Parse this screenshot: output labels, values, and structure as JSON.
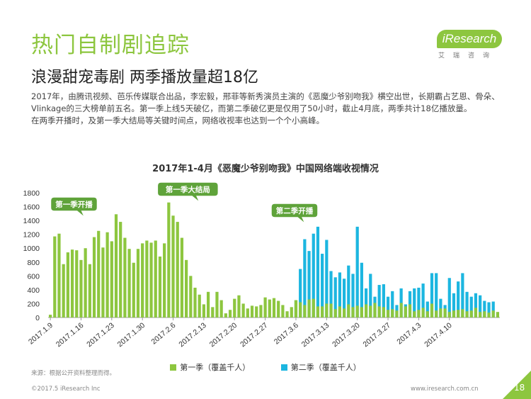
{
  "header": {
    "title": "热门自制剧追踪",
    "subtitle": "浪漫甜宠毒剧 两季播放量超18亿",
    "paragraphs": [
      "2017年，由腾讯视频、芭乐传媒联合出品，李宏毅，邢菲等新秀演员主演的《恶魔少爷别吻我》横空出世，长期霸占艺恩、骨朵、Vlinkage的三大榜单前五名。第一季上线5天破亿，而第二季破亿更是仅用了50小时，截止4月底，两季共计18亿播放量。",
      "在两季开播时，及第一季大结局等关键时间点，网络收视率也达到一个个小高峰。"
    ]
  },
  "logo": {
    "brand": "iResearch",
    "cn": "艾瑞咨询",
    "color": "#8dc63f"
  },
  "chart_data": {
    "type": "bar",
    "title": "2017年1-4月《恶魔少爷别吻我》中国网络端收视情况",
    "ylim": [
      0,
      1800
    ],
    "yticks": [
      0,
      200,
      400,
      600,
      800,
      1000,
      1200,
      1400,
      1600,
      1800
    ],
    "xtick_labels": [
      "2017.1.9",
      "2017.1.16",
      "2017.1.23",
      "2017.1.30",
      "2017.2.6",
      "2017.2.13",
      "2017.2.20",
      "2017.2.27",
      "2017.3.6",
      "2017.3.13",
      "2017.3.20",
      "2017.3.27",
      "2017.4.3",
      "2017.4.10"
    ],
    "series": [
      {
        "name": "第一季（覆盖千人）",
        "color": "#8dc63f",
        "values": [
          40,
          1170,
          1210,
          770,
          940,
          980,
          970,
          830,
          1000,
          770,
          1160,
          1250,
          1010,
          1230,
          1100,
          1490,
          1380,
          1150,
          990,
          790,
          990,
          1070,
          1110,
          1080,
          1110,
          880,
          1070,
          1660,
          1470,
          1380,
          1150,
          830,
          600,
          430,
          330,
          190,
          370,
          150,
          370,
          250,
          60,
          110,
          270,
          320,
          200,
          130,
          170,
          160,
          180,
          290,
          260,
          280,
          240,
          180,
          90,
          150,
          250,
          220,
          180,
          260,
          270,
          160,
          160,
          200,
          200,
          120,
          160,
          130,
          190,
          150,
          170,
          150,
          190,
          170,
          210,
          160,
          150,
          110,
          120,
          100,
          210,
          160,
          190,
          90,
          110,
          140,
          90,
          200,
          100,
          130,
          130,
          80,
          100,
          110,
          120,
          90,
          100,
          140,
          80,
          90,
          70,
          100,
          80
        ]
      },
      {
        "name": "第二季（覆盖千人）",
        "color": "#1cb6e0",
        "values": [
          0,
          0,
          0,
          0,
          0,
          0,
          0,
          0,
          0,
          0,
          0,
          0,
          0,
          0,
          0,
          0,
          0,
          0,
          0,
          0,
          0,
          0,
          0,
          0,
          0,
          0,
          0,
          0,
          0,
          0,
          0,
          0,
          0,
          0,
          0,
          0,
          0,
          0,
          0,
          0,
          0,
          0,
          0,
          0,
          0,
          0,
          0,
          0,
          0,
          0,
          0,
          0,
          0,
          0,
          0,
          0,
          250,
          700,
          1130,
          960,
          1210,
          1310,
          920,
          1120,
          670,
          580,
          650,
          560,
          750,
          630,
          1310,
          790,
          420,
          630,
          300,
          470,
          480,
          300,
          380,
          180,
          420,
          190,
          380,
          420,
          430,
          490,
          230,
          640,
          640,
          270,
          180,
          570,
          350,
          520,
          640,
          370,
          300,
          350,
          320,
          240,
          220,
          230
        ]
      }
    ],
    "annotations": [
      {
        "label": "第一季开播",
        "index": 2
      },
      {
        "label": "第一季大结局",
        "index": 27
      },
      {
        "label": "第二季开播",
        "index": 56
      }
    ]
  },
  "footer": {
    "source": "来源：根据公开资料整理而得。",
    "copyright": "©2017.5 iResearch Inc",
    "website": "www.iresearch.com.cn",
    "page": "18"
  }
}
